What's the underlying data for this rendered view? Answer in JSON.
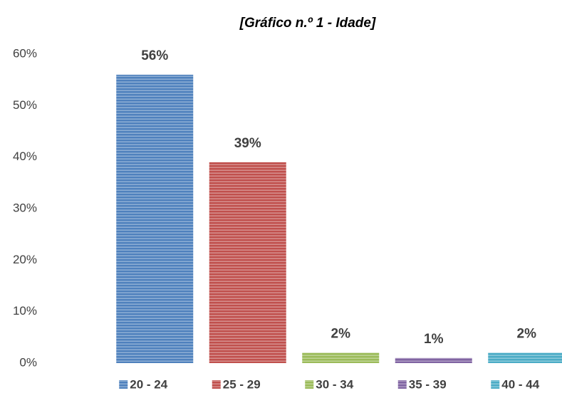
{
  "chart_data": {
    "type": "bar",
    "title": "[Gráfico n.º 1 - Idade]",
    "categories": [
      "20 - 24",
      "25 - 29",
      "30 - 34",
      "35 - 39",
      "40 - 44"
    ],
    "values": [
      56,
      39,
      2,
      1,
      2
    ],
    "value_labels": [
      "56%",
      "39%",
      "2%",
      "1%",
      "2%"
    ],
    "colors": [
      "#4f81bd",
      "#c0504d",
      "#9bbb59",
      "#8064a2",
      "#4bacc6"
    ],
    "ylim": [
      0,
      60
    ],
    "yticks": [
      {
        "value": 0,
        "label": "0%"
      },
      {
        "value": 10,
        "label": "10%"
      },
      {
        "value": 20,
        "label": "20%"
      },
      {
        "value": 30,
        "label": "30%"
      },
      {
        "value": 40,
        "label": "40%"
      },
      {
        "value": 50,
        "label": "50%"
      },
      {
        "value": 60,
        "label": "60%"
      }
    ],
    "grid": false
  }
}
